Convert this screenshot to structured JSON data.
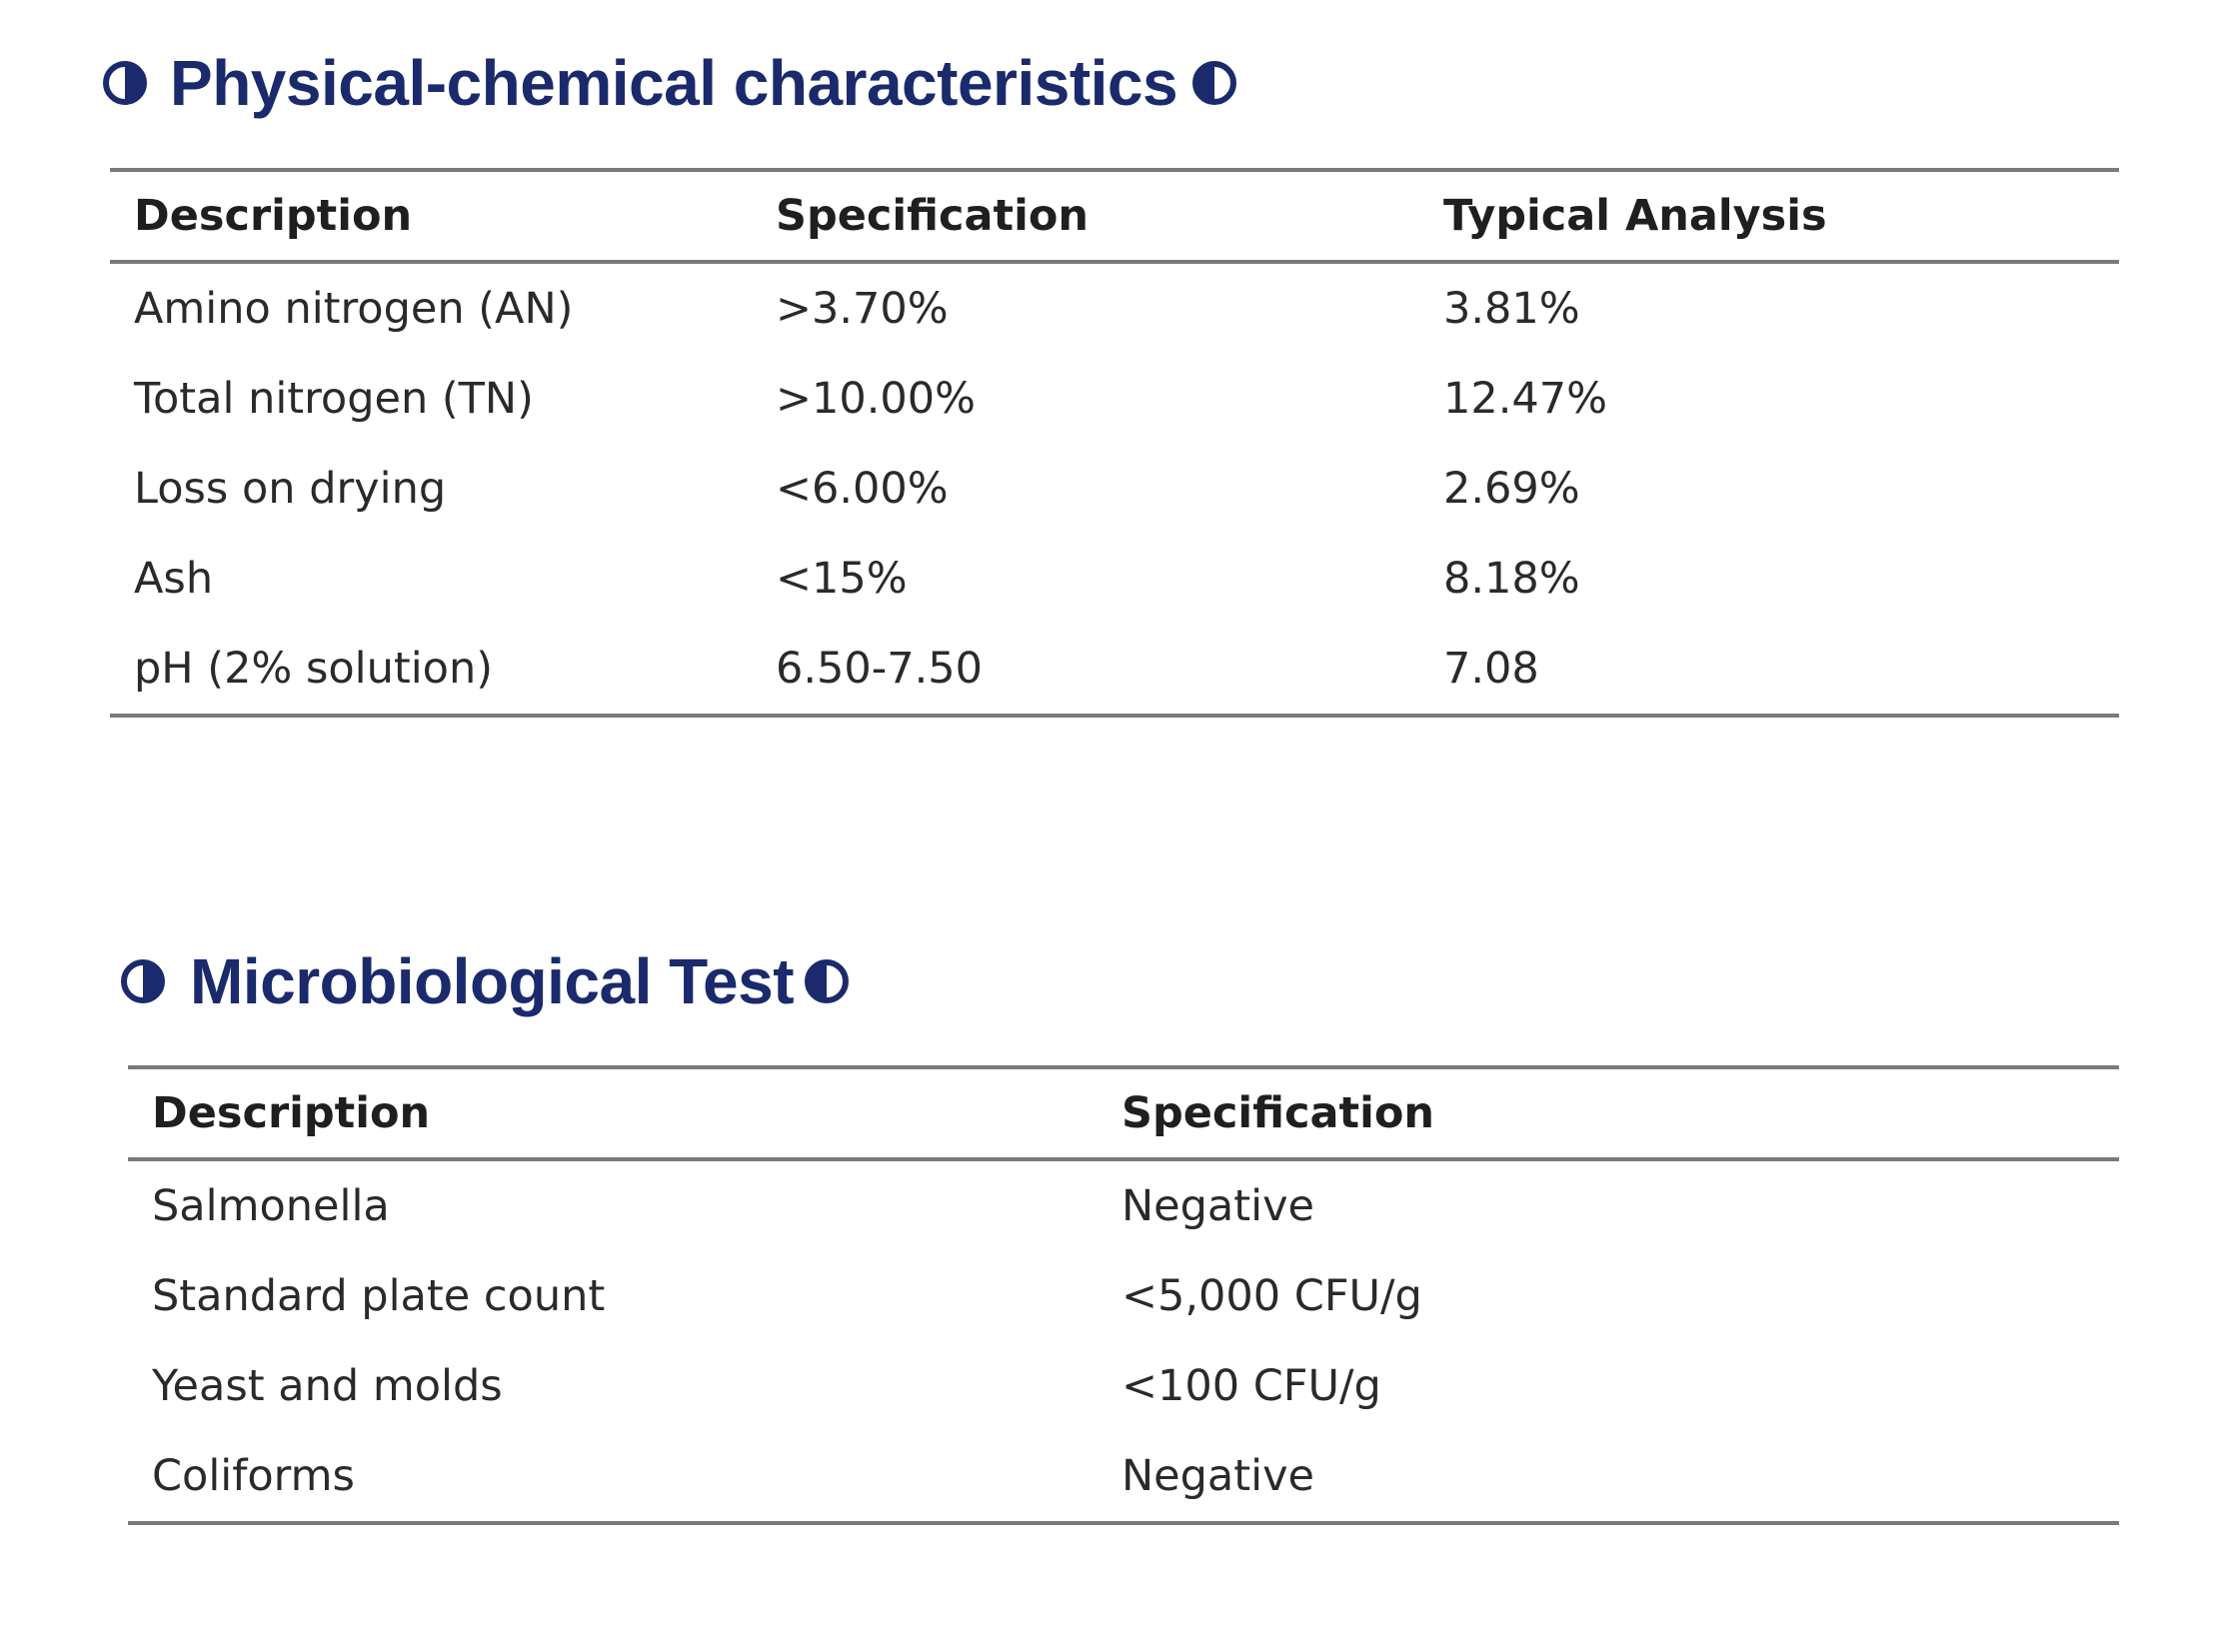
{
  "colors": {
    "heading": "#1a2a6c",
    "rule": "#7a7a7a",
    "text": "#2a2a2a"
  },
  "physical": {
    "title": "Physical-chemical characteristics",
    "icon": "half-circle-icon",
    "headers": [
      "Description",
      "Specification",
      "Typical Analysis"
    ],
    "rows": [
      [
        "Amino nitrogen (AN)",
        ">3.70%",
        "3.81%"
      ],
      [
        "Total nitrogen (TN)",
        ">10.00%",
        "12.47%"
      ],
      [
        "Loss on drying",
        "<6.00%",
        "2.69%"
      ],
      [
        "Ash",
        "<15%",
        "8.18%"
      ],
      [
        "pH (2% solution)",
        "6.50-7.50",
        "7.08"
      ]
    ]
  },
  "micro": {
    "title": "Microbiological Test",
    "icon": "half-circle-icon",
    "headers": [
      "Description",
      "Specification"
    ],
    "rows": [
      [
        "Salmonella",
        "Negative"
      ],
      [
        "Standard plate count",
        "<5,000 CFU/g"
      ],
      [
        "Yeast and molds",
        "<100 CFU/g"
      ],
      [
        "Coliforms",
        "Negative"
      ]
    ]
  }
}
